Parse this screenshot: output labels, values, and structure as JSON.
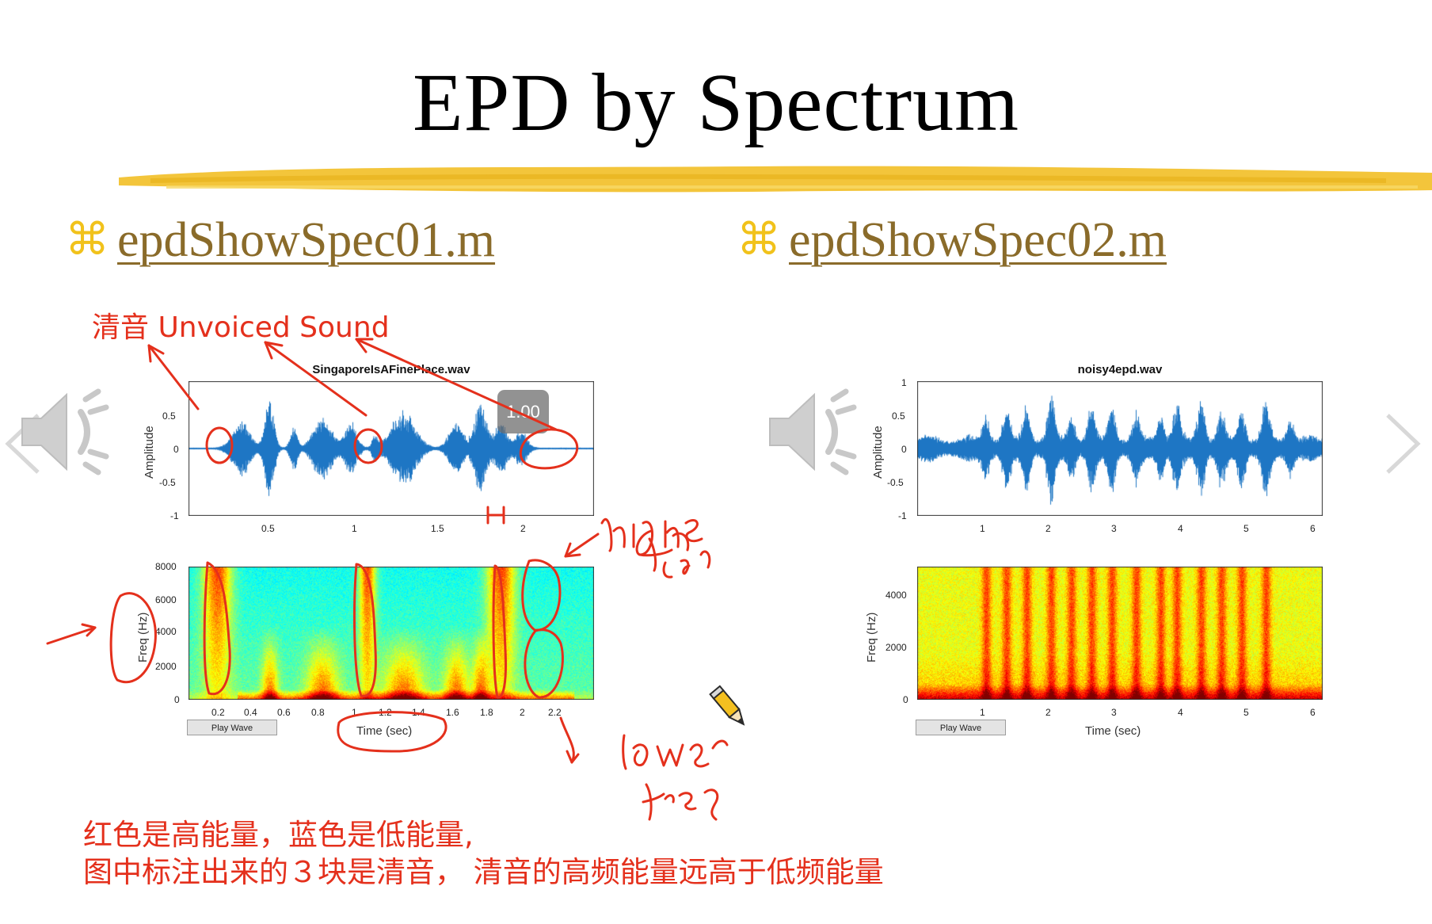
{
  "slide": {
    "title": "EPD by Spectrum"
  },
  "bullets": [
    {
      "symbol": "⌘",
      "label": "epdShowSpec01.m"
    },
    {
      "symbol": "⌘",
      "label": "epdShowSpec02.m"
    }
  ],
  "annotations": {
    "unvoiced": "清音 Unvoiced Sound",
    "bottom_line1": "红色是高能量，蓝色是低能量,",
    "bottom_line2": "图中标注出来的３块是清音，  清音的高频能量远高于低频能量",
    "handwritten": [
      "higher freq",
      "lower freq"
    ]
  },
  "video_badge": "1.00",
  "left_panel": {
    "wave_title": "SingaporeIsAFinePlace.wav",
    "wave_ylabel": "Amplitude",
    "wave_yticks": [
      "0.5",
      "0",
      "-0.5",
      "-1"
    ],
    "wave_xticks": [
      "0.5",
      "1",
      "1.5",
      "2"
    ],
    "spec_ylabel": "Freq (Hz)",
    "spec_yticks": [
      "8000",
      "6000",
      "4000",
      "2000",
      "0"
    ],
    "spec_xticks": [
      "0.2",
      "0.4",
      "0.6",
      "0.8",
      "1",
      "1.2",
      "1.4",
      "1.6",
      "1.8",
      "2",
      "2.2"
    ],
    "spec_xlabel": "Time (sec)",
    "play_label": "Play Wave"
  },
  "right_panel": {
    "wave_title": "noisy4epd.wav",
    "wave_ylabel": "Amplitude",
    "wave_yticks": [
      "1",
      "0.5",
      "0",
      "-0.5",
      "-1"
    ],
    "wave_xticks": [
      "1",
      "2",
      "3",
      "4",
      "5",
      "6"
    ],
    "spec_ylabel": "Freq (Hz)",
    "spec_yticks": [
      "4000",
      "2000",
      "0"
    ],
    "spec_xticks": [
      "1",
      "2",
      "3",
      "4",
      "5",
      "6"
    ],
    "spec_xlabel": "Time (sec)",
    "play_label": "Play Wave"
  },
  "colors": {
    "accent_red": "#e4301c",
    "wave_blue": "#1f77c4",
    "link_brown": "#8a6b2a",
    "brush_yellow": "#f2c230"
  }
}
